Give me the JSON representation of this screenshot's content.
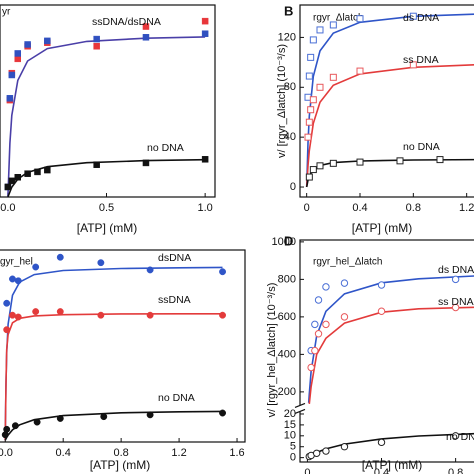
{
  "chart_data": [
    {
      "type": "scatter",
      "title": "yr",
      "xlabel": "[ATP] (mM)",
      "marker": "square",
      "filled": true,
      "xlim": [
        -0.04,
        1.05
      ],
      "xticks": [
        {
          "value": 0,
          "label": "0.0"
        },
        {
          "value": 0.5,
          "label": "0.5"
        },
        {
          "value": 1,
          "label": "1.0"
        }
      ],
      "ylim": [
        0,
        107
      ],
      "series": [
        {
          "color": "#e8363a",
          "x": [
            0.01,
            0.02,
            0.05,
            0.1,
            0.2,
            0.45,
            0.7,
            1.0
          ],
          "values": [
            54,
            69,
            77,
            84,
            86,
            84,
            95,
            98
          ]
        },
        {
          "name": "ssDNA/dsDNA",
          "color": "#3050c0",
          "fit_color": "#4a3fa8",
          "x": [
            0,
            0.01,
            0.02,
            0.05,
            0.1,
            0.2,
            0.45,
            0.7,
            1.0
          ],
          "values": [
            5.6,
            55,
            68,
            80,
            85,
            87,
            88,
            89,
            91
          ],
          "fit_x": [
            0,
            0.01,
            0.02,
            0.05,
            0.1,
            0.2,
            0.4,
            0.7,
            1.0
          ],
          "fit_values": [
            0,
            30,
            45.5,
            65,
            75.8,
            82.7,
            86.7,
            88.5,
            89.2
          ]
        },
        {
          "name": "no DNA",
          "color": "#111111",
          "fit_color": "#111111",
          "x": [
            0,
            0.02,
            0.05,
            0.1,
            0.15,
            0.2,
            0.45,
            0.7,
            1.0
          ],
          "values": [
            5.6,
            9,
            11,
            13,
            14,
            15,
            18,
            19,
            21
          ],
          "fit_x": [
            0,
            0.02,
            0.05,
            0.1,
            0.2,
            0.4,
            0.7,
            1.0
          ],
          "fit_values": [
            0,
            5.5,
            10,
            13.75,
            16.9,
            19.1,
            20.3,
            20.8
          ]
        }
      ]
    },
    {
      "type": "scatter",
      "panel_label": "B",
      "title": "rgyr_Δlatch",
      "xlabel": "[ATP] (mM)",
      "ylabel": "v/ [rgyr_Δlatch] (10⁻³/s)",
      "marker": "square",
      "filled": false,
      "xlim": [
        -0.05,
        1.27
      ],
      "xticks": [
        0,
        0.4,
        0.8,
        1.2
      ],
      "ylim": [
        -8,
        146
      ],
      "yticks": [
        0,
        40,
        80,
        120
      ],
      "series": [
        {
          "name": "ds DNA",
          "color": "#4a6fd6",
          "fit_color": "#2f55c8",
          "x": [
            0.01,
            0.02,
            0.03,
            0.05,
            0.1,
            0.2,
            0.4,
            0.8
          ],
          "values": [
            72,
            89,
            104,
            118,
            126,
            130,
            135,
            137
          ],
          "fit_x": [
            0,
            0.01,
            0.02,
            0.05,
            0.1,
            0.2,
            0.4,
            0.8,
            1.3
          ],
          "fit_values": [
            0,
            35.5,
            56.8,
            88.75,
            109.2,
            123.5,
            132.1,
            136.9,
            138.8
          ]
        },
        {
          "name": "ss DNA",
          "color": "#e8595c",
          "fit_color": "#e33b3b",
          "x": [
            0.01,
            0.02,
            0.03,
            0.05,
            0.1,
            0.2,
            0.4,
            0.8
          ],
          "values": [
            40,
            52,
            62,
            70,
            80,
            88,
            93,
            98
          ],
          "fit_x": [
            0,
            0.01,
            0.02,
            0.05,
            0.1,
            0.2,
            0.4,
            0.8,
            1.3
          ],
          "fit_values": [
            0,
            17,
            29.1,
            51,
            68,
            81.6,
            90.7,
            96,
            98.2
          ]
        },
        {
          "name": "no DNA",
          "color": "#222222",
          "fit_color": "#111111",
          "x": [
            0.02,
            0.05,
            0.1,
            0.2,
            0.4,
            0.7,
            1.0
          ],
          "values": [
            8,
            14,
            17,
            19,
            20,
            21,
            22
          ],
          "fit_x": [
            0,
            0.01,
            0.02,
            0.05,
            0.1,
            0.2,
            0.4,
            0.8,
            1.3
          ],
          "fit_values": [
            0,
            5.6,
            9,
            14.1,
            17.3,
            19.6,
            20.9,
            21.7,
            22
          ]
        }
      ]
    },
    {
      "type": "scatter",
      "title": "gyr_hel",
      "xlabel": "[ATP] (mM)",
      "marker": "circle",
      "filled": true,
      "xlim": [
        -0.05,
        1.655
      ],
      "xticks": [
        {
          "value": 0,
          "label": "0.0"
        },
        0.4,
        0.8,
        1.2,
        1.6
      ],
      "ylim": [
        -1,
        105
      ],
      "series": [
        {
          "name": "dsDNA",
          "color": "#2f55c8",
          "fit_color": "#2f55c8",
          "x": [
            0.01,
            0.05,
            0.09,
            0.21,
            0.38,
            0.66,
            1.0,
            1.5
          ],
          "values": [
            75.6,
            89,
            88,
            95.6,
            101,
            98,
            94,
            93
          ],
          "fit_x": [
            0,
            0.005,
            0.01,
            0.02,
            0.05,
            0.1,
            0.2,
            0.4,
            0.8,
            1.2,
            1.5
          ],
          "fit_values": [
            0,
            32,
            48,
            64,
            80,
            87.3,
            91.4,
            93.7,
            94.8,
            95.2,
            95.4
          ]
        },
        {
          "name": "ssDNA",
          "color": "#e33b3b",
          "fit_color": "#e33b3b",
          "x": [
            0.01,
            0.05,
            0.09,
            0.21,
            0.38,
            0.66,
            1.0,
            1.5
          ],
          "values": [
            61,
            69,
            68,
            71,
            71,
            69,
            69,
            69
          ],
          "fit_x": [
            0,
            0.005,
            0.01,
            0.02,
            0.05,
            0.1,
            0.2,
            0.4,
            0.8,
            1.2,
            1.5
          ],
          "fit_values": [
            0,
            31.1,
            50,
            58.3,
            64.8,
            67.3,
            68.6,
            69.3,
            69.7,
            69.8,
            69.8
          ]
        },
        {
          "name": "no DNA",
          "color": "#111111",
          "fit_color": "#111111",
          "x": [
            0,
            0.01,
            0.07,
            0.22,
            0.38,
            0.68,
            1.0,
            1.5
          ],
          "values": [
            3,
            6,
            8,
            10,
            12,
            13,
            14,
            15
          ],
          "fit_x": [
            0,
            0.005,
            0.01,
            0.02,
            0.05,
            0.1,
            0.2,
            0.4,
            0.8,
            1.2,
            1.5
          ],
          "fit_values": [
            0,
            0.8,
            1.5,
            2.8,
            5.7,
            8.5,
            11.3,
            13.6,
            15.1,
            15.7,
            15.9
          ]
        }
      ]
    },
    {
      "type": "scatter",
      "panel_label": "D",
      "title": "rgyr_hel_Δlatch",
      "xlabel": "[ATP] (mM)",
      "ylabel": "v/ [rgyr_hel_Δlatch] (10⁻³/s)",
      "marker": "circle",
      "filled": false,
      "xlim": [
        -0.04,
        0.91
      ],
      "xticks": [
        0,
        0.4,
        0.8
      ],
      "ylim_lower": [
        -2,
        21
      ],
      "yticks_lower": [
        0,
        5,
        10,
        15,
        20
      ],
      "ylim_upper": [
        130,
        1010
      ],
      "yticks_upper": [
        200,
        400,
        600,
        800,
        1000
      ],
      "series": [
        {
          "name": "ds DNA",
          "color": "#4a6fd6",
          "fit_color": "#2f55c8",
          "x": [
            0.02,
            0.04,
            0.06,
            0.1,
            0.2,
            0.4,
            0.8
          ],
          "values": [
            420,
            560,
            690,
            760,
            780,
            770,
            800
          ],
          "fit_x": [
            0.007,
            0.01,
            0.02,
            0.05,
            0.1,
            0.2,
            0.4,
            0.6,
            0.9
          ],
          "fit_values": [
            141.7,
            189,
            309,
            500,
            630,
            723,
            782,
            803,
            818
          ]
        },
        {
          "name": "ss DNA",
          "color": "#e8595c",
          "fit_color": "#e33b3b",
          "x": [
            0.02,
            0.04,
            0.06,
            0.1,
            0.2,
            0.4,
            0.8
          ],
          "values": [
            330,
            420,
            510,
            560,
            600,
            630,
            650
          ],
          "fit_x": [
            0.01,
            0.02,
            0.05,
            0.1,
            0.2,
            0.4,
            0.6,
            0.9
          ],
          "fit_values": [
            136,
            227,
            400,
            486,
            567,
            625,
            643,
            651
          ]
        },
        {
          "name": "no DNA",
          "color": "#222222",
          "fit_color": "#111111",
          "x": [
            0.01,
            0.02,
            0.05,
            0.1,
            0.2,
            0.4,
            0.8
          ],
          "values": [
            0.5,
            1,
            2,
            3,
            5,
            7,
            10
          ],
          "fit_x": [
            0,
            0.01,
            0.02,
            0.05,
            0.1,
            0.2,
            0.4,
            0.6,
            0.9
          ],
          "fit_values": [
            0,
            0.54,
            1.04,
            2.33,
            4,
            6.2,
            8.6,
            9.9,
            10.96
          ]
        }
      ]
    }
  ]
}
